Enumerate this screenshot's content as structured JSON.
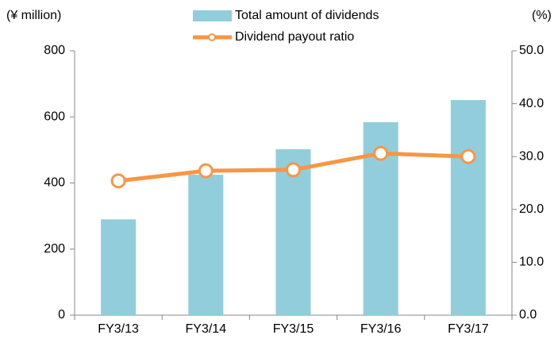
{
  "chart_data": {
    "type": "bar_line",
    "y_label": "(¥ million)",
    "y2_label": "(%)",
    "categories": [
      "FY3/13",
      "FY3/14",
      "FY3/15",
      "FY3/16",
      "FY3/17"
    ],
    "series": [
      {
        "name": "Total amount of dividends",
        "type": "bar",
        "color": "#92cddc",
        "values": [
          290,
          425,
          502,
          584,
          651
        ]
      },
      {
        "name": "Dividend payout ratio",
        "type": "line",
        "color": "#f79646",
        "axis": "y2",
        "values": [
          25.4,
          27.3,
          27.5,
          30.6,
          30.0
        ]
      }
    ],
    "ylim": [
      0,
      800
    ],
    "yticks": [
      0,
      200,
      400,
      600,
      800
    ],
    "y2lim": [
      0,
      50
    ],
    "y2ticks": [
      {
        "value": 0,
        "label": "0.0"
      },
      {
        "value": 10,
        "label": "10.0"
      },
      {
        "value": 20,
        "label": "20.0"
      },
      {
        "value": 30,
        "label": "30.0"
      },
      {
        "value": 40,
        "label": "40.0"
      },
      {
        "value": 50,
        "label": "50.0"
      }
    ],
    "grid": false
  }
}
